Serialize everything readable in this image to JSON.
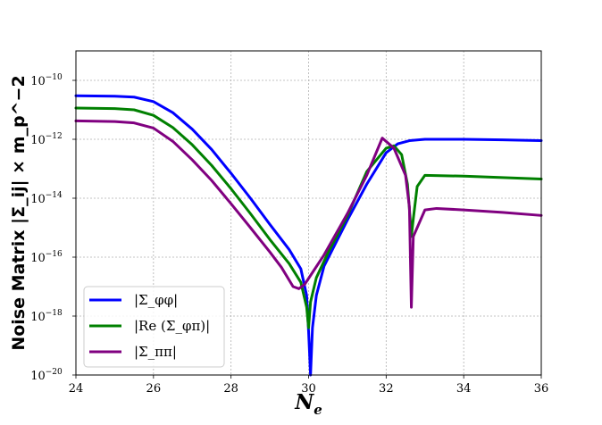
{
  "chart_data": {
    "type": "line",
    "xlabel": "N_e",
    "ylabel": "Noise Matrix  |Σ_ij| × m_p^−2",
    "xlim": [
      24,
      36
    ],
    "ylim": [
      1e-20,
      1e-09
    ],
    "yscale": "log",
    "grid": true,
    "legend_position": "lower-left",
    "x_ticks": [
      "24",
      "26",
      "28",
      "30",
      "32",
      "34",
      "36"
    ],
    "y_ticks": [
      {
        "base": "10",
        "exp": "−20"
      },
      {
        "base": "10",
        "exp": "−18"
      },
      {
        "base": "10",
        "exp": "−16"
      },
      {
        "base": "10",
        "exp": "−14"
      },
      {
        "base": "10",
        "exp": "−12"
      },
      {
        "base": "10",
        "exp": "−10"
      }
    ],
    "series": [
      {
        "name": "|Σ_φφ|",
        "color": "#0000ff",
        "points": [
          [
            24,
            3e-11
          ],
          [
            25,
            2.9e-11
          ],
          [
            25.5,
            2.7e-11
          ],
          [
            26,
            1.9e-11
          ],
          [
            26.5,
            8e-12
          ],
          [
            27,
            2.2e-12
          ],
          [
            27.5,
            4.5e-13
          ],
          [
            28,
            7e-14
          ],
          [
            28.5,
            1e-14
          ],
          [
            29,
            1.3e-15
          ],
          [
            29.5,
            1.8e-16
          ],
          [
            29.8,
            4e-17
          ],
          [
            29.95,
            5e-18
          ],
          [
            30.0,
            3e-19
          ],
          [
            30.05,
            1e-20
          ],
          [
            30.1,
            4e-19
          ],
          [
            30.2,
            5e-18
          ],
          [
            30.4,
            5e-17
          ],
          [
            30.7,
            3e-16
          ],
          [
            31,
            1.8e-15
          ],
          [
            31.5,
            3e-14
          ],
          [
            32,
            3.5e-13
          ],
          [
            32.3,
            7e-13
          ],
          [
            32.6,
            9e-13
          ],
          [
            33,
            1e-12
          ],
          [
            34,
            1e-12
          ],
          [
            35,
            9.6e-13
          ],
          [
            36,
            9e-13
          ]
        ]
      },
      {
        "name": "|Re (Σ_φπ)|",
        "color": "#008000",
        "points": [
          [
            24,
            1.15e-11
          ],
          [
            25,
            1.1e-11
          ],
          [
            25.5,
            1e-11
          ],
          [
            26,
            6.5e-12
          ],
          [
            26.5,
            2.5e-12
          ],
          [
            27,
            6.5e-13
          ],
          [
            27.5,
            1.3e-13
          ],
          [
            28,
            2.1e-14
          ],
          [
            28.5,
            3e-15
          ],
          [
            29,
            4e-16
          ],
          [
            29.5,
            6e-17
          ],
          [
            29.8,
            1.4e-17
          ],
          [
            29.95,
            2e-18
          ],
          [
            30.0,
            4e-19
          ],
          [
            30.05,
            3e-18
          ],
          [
            30.2,
            2e-17
          ],
          [
            30.5,
            1.4e-16
          ],
          [
            31,
            2.5e-15
          ],
          [
            31.5,
            8e-14
          ],
          [
            32,
            5e-13
          ],
          [
            32.2,
            6e-13
          ],
          [
            32.4,
            3e-13
          ],
          [
            32.55,
            3e-14
          ],
          [
            32.62,
            2e-15
          ],
          [
            32.65,
            5e-16
          ],
          [
            32.7,
            2e-15
          ],
          [
            32.8,
            2.5e-14
          ],
          [
            33,
            6e-14
          ],
          [
            34,
            5.6e-14
          ],
          [
            35,
            5e-14
          ],
          [
            36,
            4.5e-14
          ]
        ]
      },
      {
        "name": "|Σ_ππ|",
        "color": "#800080",
        "points": [
          [
            24,
            4.2e-12
          ],
          [
            25,
            4e-12
          ],
          [
            25.5,
            3.6e-12
          ],
          [
            26,
            2.4e-12
          ],
          [
            26.5,
            8.5e-13
          ],
          [
            27,
            2e-13
          ],
          [
            27.5,
            4e-14
          ],
          [
            28,
            6.5e-15
          ],
          [
            28.5,
            1e-15
          ],
          [
            29,
            1.5e-16
          ],
          [
            29.3,
            4.5e-17
          ],
          [
            29.6,
            1e-17
          ],
          [
            29.75,
            8.5e-18
          ],
          [
            29.9,
            1.2e-17
          ],
          [
            30.1,
            3e-17
          ],
          [
            30.4,
            1.2e-16
          ],
          [
            31,
            3e-15
          ],
          [
            31.5,
            6e-14
          ],
          [
            31.9,
            1.1e-12
          ],
          [
            32.2,
            5e-13
          ],
          [
            32.5,
            6e-14
          ],
          [
            32.6,
            5e-15
          ],
          [
            32.65,
            2e-18
          ],
          [
            32.7,
            5e-16
          ],
          [
            32.8,
            1e-15
          ],
          [
            33,
            4e-15
          ],
          [
            33.3,
            4.5e-15
          ],
          [
            34,
            4e-15
          ],
          [
            35,
            3.3e-15
          ],
          [
            36,
            2.6e-15
          ]
        ]
      }
    ]
  }
}
